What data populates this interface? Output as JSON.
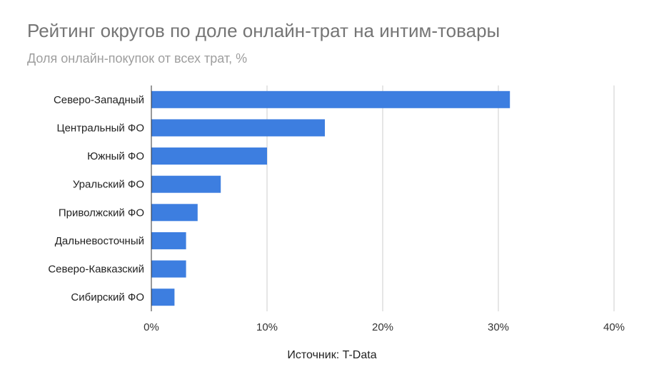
{
  "chart_data": {
    "type": "bar",
    "orientation": "horizontal",
    "title": "Рейтинг округов по доле онлайн-трат на интим-товары",
    "subtitle": "Доля онлайн-покупок от всех трат, %",
    "categories": [
      "Северо-Западный",
      "Центральный ФО",
      "Южный ФО",
      "Уральский ФО",
      "Приволжский ФО",
      "Дальневосточный",
      "Северо-Кавказский",
      "Сибирский ФО"
    ],
    "values": [
      31,
      15,
      10,
      6,
      4,
      3,
      3,
      2
    ],
    "xlim": [
      0,
      40
    ],
    "xticks": [
      0,
      10,
      20,
      30,
      40
    ],
    "xtick_labels": [
      "0%",
      "10%",
      "20%",
      "30%",
      "40%"
    ],
    "grid": true,
    "bar_color": "#3d7ee0",
    "source": "Источник: T-Data"
  }
}
